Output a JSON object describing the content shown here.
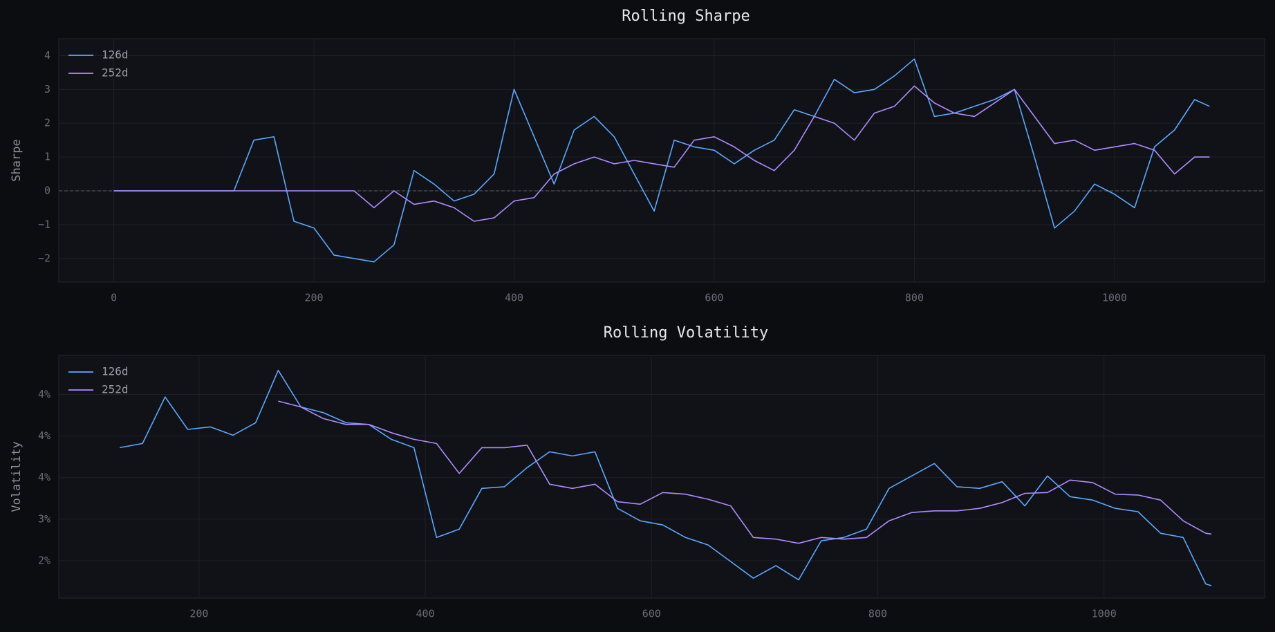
{
  "chart_data": [
    {
      "type": "line",
      "title": "Rolling Sharpe",
      "ylabel": "Sharpe",
      "grid": true,
      "legend": "upper left",
      "reference_line": 0,
      "xlim": [
        -55,
        1150
      ],
      "ylim": [
        -2.7,
        4.5
      ],
      "xticks": [
        0,
        200,
        400,
        600,
        800,
        1000
      ],
      "yticks": [
        {
          "value": -2,
          "label": "−2"
        },
        {
          "value": -1,
          "label": "−1"
        },
        0,
        1,
        2,
        3,
        4
      ],
      "x": [
        0,
        20,
        40,
        60,
        80,
        100,
        120,
        140,
        160,
        180,
        200,
        220,
        240,
        260,
        280,
        300,
        320,
        340,
        360,
        380,
        400,
        420,
        440,
        460,
        480,
        500,
        520,
        540,
        560,
        580,
        600,
        620,
        640,
        660,
        680,
        700,
        720,
        740,
        760,
        780,
        800,
        820,
        840,
        860,
        880,
        900,
        920,
        940,
        960,
        980,
        1000,
        1020,
        1040,
        1060,
        1080,
        1095
      ],
      "series": [
        {
          "name": "126d",
          "color": "#5ba8ff",
          "values": [
            0,
            0,
            0,
            0,
            0,
            0,
            0,
            1.5,
            1.6,
            -0.9,
            -1.1,
            -1.9,
            -2.0,
            -2.1,
            -1.6,
            0.6,
            0.2,
            -0.3,
            -0.1,
            0.5,
            3.0,
            1.6,
            0.2,
            1.8,
            2.2,
            1.6,
            0.5,
            -0.6,
            1.5,
            1.3,
            1.2,
            0.8,
            1.2,
            1.5,
            2.4,
            2.2,
            3.3,
            2.9,
            3.0,
            3.4,
            3.9,
            2.2,
            2.3,
            2.5,
            2.7,
            3.0,
            1.0,
            -1.1,
            -0.6,
            0.2,
            -0.1,
            -0.5,
            1.3,
            1.8,
            2.7,
            2.5
          ]
        },
        {
          "name": "252d",
          "color": "#b08cff",
          "values": [
            0,
            0,
            0,
            0,
            0,
            0,
            0,
            0,
            0,
            0,
            0,
            0,
            0,
            -0.5,
            0,
            -0.4,
            -0.3,
            -0.5,
            -0.9,
            -0.8,
            -0.3,
            -0.2,
            0.5,
            0.8,
            1.0,
            0.8,
            0.9,
            0.8,
            0.7,
            1.5,
            1.6,
            1.3,
            0.9,
            0.6,
            1.2,
            2.2,
            2.0,
            1.5,
            2.3,
            2.5,
            3.1,
            2.6,
            2.3,
            2.2,
            2.6,
            3.0,
            2.2,
            1.4,
            1.5,
            1.2,
            1.3,
            1.4,
            1.2,
            0.5,
            1.0,
            1.0
          ]
        }
      ]
    },
    {
      "type": "line",
      "title": "Rolling Volatility",
      "ylabel": "Volatility",
      "grid": true,
      "legend": "upper left",
      "xlim": [
        76,
        1142
      ],
      "ylim": [
        2.05,
        4.97
      ],
      "xticks": [
        200,
        400,
        600,
        800,
        1000
      ],
      "yticks": [
        {
          "value": 2.5,
          "label": "2%"
        },
        {
          "value": 3,
          "label": "3%"
        },
        {
          "value": 3.5,
          "label": "4%"
        },
        {
          "value": 4,
          "label": "4%"
        },
        {
          "value": 4.5,
          "label": "4%"
        }
      ],
      "x": [
        130,
        150,
        170,
        190,
        210,
        230,
        250,
        270,
        290,
        310,
        330,
        350,
        370,
        390,
        410,
        430,
        450,
        470,
        490,
        510,
        530,
        550,
        570,
        590,
        610,
        630,
        650,
        670,
        690,
        710,
        730,
        750,
        770,
        790,
        810,
        830,
        850,
        870,
        890,
        910,
        930,
        950,
        970,
        990,
        1010,
        1030,
        1050,
        1070,
        1090,
        1095
      ],
      "series": [
        {
          "name": "126d",
          "color": "#5ba8ff",
          "values": [
            3.86,
            3.91,
            4.47,
            4.08,
            4.11,
            4.01,
            4.16,
            4.79,
            4.35,
            4.28,
            4.16,
            4.14,
            3.96,
            3.86,
            2.78,
            2.88,
            3.37,
            3.39,
            3.62,
            3.81,
            3.76,
            3.81,
            3.13,
            2.98,
            2.93,
            2.78,
            2.69,
            2.49,
            2.29,
            2.44,
            2.27,
            2.74,
            2.78,
            2.88,
            3.37,
            3.52,
            3.67,
            3.39,
            3.37,
            3.45,
            3.16,
            3.52,
            3.27,
            3.23,
            3.13,
            3.09,
            2.83,
            2.78,
            2.22,
            2.2
          ]
        },
        {
          "name": "252d",
          "color": "#b08cff",
          "values": [
            null,
            null,
            null,
            null,
            null,
            null,
            null,
            4.42,
            4.35,
            4.21,
            4.14,
            4.14,
            4.04,
            3.96,
            3.91,
            3.55,
            3.86,
            3.86,
            3.89,
            3.42,
            3.37,
            3.42,
            3.21,
            3.18,
            3.32,
            3.3,
            3.24,
            3.16,
            2.78,
            2.76,
            2.71,
            2.78,
            2.76,
            2.78,
            2.98,
            3.08,
            3.1,
            3.1,
            3.13,
            3.2,
            3.31,
            3.32,
            3.47,
            3.44,
            3.3,
            3.29,
            3.23,
            2.98,
            2.83,
            2.82
          ]
        }
      ]
    }
  ]
}
